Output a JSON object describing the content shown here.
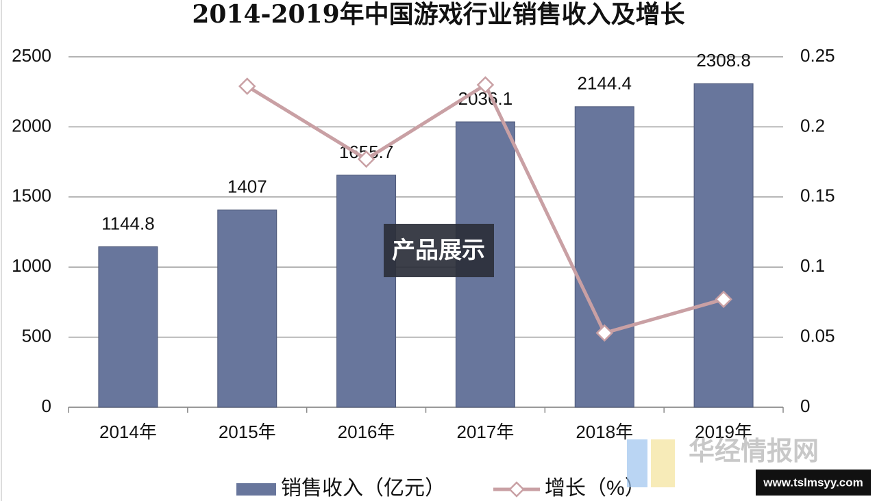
{
  "chart_data": {
    "type": "bar_line",
    "title": "2014-2019年中国游戏行业销售收入及增长",
    "categories": [
      "2014年",
      "2015年",
      "2016年",
      "2017年",
      "2018年",
      "2019年"
    ],
    "series": [
      {
        "name": "销售收入（亿元）",
        "type": "bar",
        "color": "#68769c",
        "values": [
          1144.8,
          1407,
          1655.7,
          2036.1,
          2144.4,
          2308.8
        ],
        "data_labels": true
      },
      {
        "name": "增长（%）",
        "type": "line",
        "axis": "y2",
        "color": "#c9a0a4",
        "values": [
          null,
          0.229,
          0.177,
          0.23,
          0.053,
          0.077
        ]
      }
    ],
    "ylim": [
      0,
      2500
    ],
    "yticks": [
      0,
      500,
      1000,
      1500,
      2000,
      2500
    ],
    "y2lim": [
      0,
      0.25
    ],
    "y2ticks": [
      0,
      0.05,
      0.1,
      0.15,
      0.2,
      0.25
    ],
    "grid": true,
    "legend": "bottom"
  },
  "overlays": {
    "label": "产品展示",
    "watermark": "华经情报网",
    "url": "www.tslmsyy.com"
  }
}
